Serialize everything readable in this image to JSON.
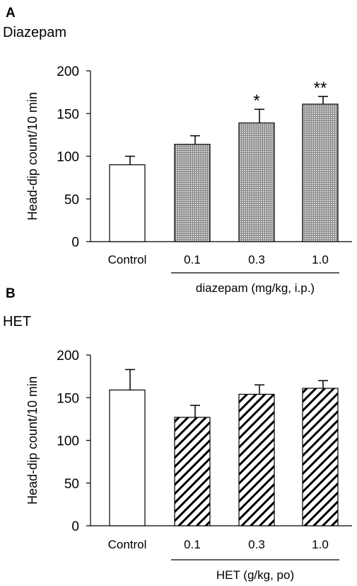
{
  "chart_data": [
    {
      "type": "bar",
      "panel_label": "A",
      "title": "Diazepam",
      "ylabel": "Head-dip count/10 min",
      "ylim": [
        0,
        200
      ],
      "yticks": [
        "0",
        "50",
        "100",
        "150",
        "200"
      ],
      "categories": [
        "Control",
        "0.1",
        "0.3",
        "1.0"
      ],
      "values": [
        90,
        114,
        139,
        161
      ],
      "errors": [
        10,
        10,
        16,
        9
      ],
      "significance": [
        "",
        "",
        "*",
        "**"
      ],
      "fills": [
        "white",
        "dotted",
        "dotted",
        "dotted"
      ],
      "group_label": "diazepam (mg/kg, i.p.)",
      "grid": false
    },
    {
      "type": "bar",
      "panel_label": "B",
      "title": "HET",
      "ylabel": "Head-dip count/10 min",
      "ylim": [
        0,
        200
      ],
      "yticks": [
        "0",
        "50",
        "100",
        "150",
        "200"
      ],
      "categories": [
        "Control",
        "0.1",
        "0.3",
        "1.0"
      ],
      "values": [
        159,
        127,
        154,
        161
      ],
      "errors": [
        24,
        14,
        11,
        9
      ],
      "significance": [
        "",
        "",
        "",
        ""
      ],
      "fills": [
        "white",
        "hatched",
        "hatched",
        "hatched"
      ],
      "group_label": "HET (g/kg, po)",
      "grid": false
    }
  ]
}
